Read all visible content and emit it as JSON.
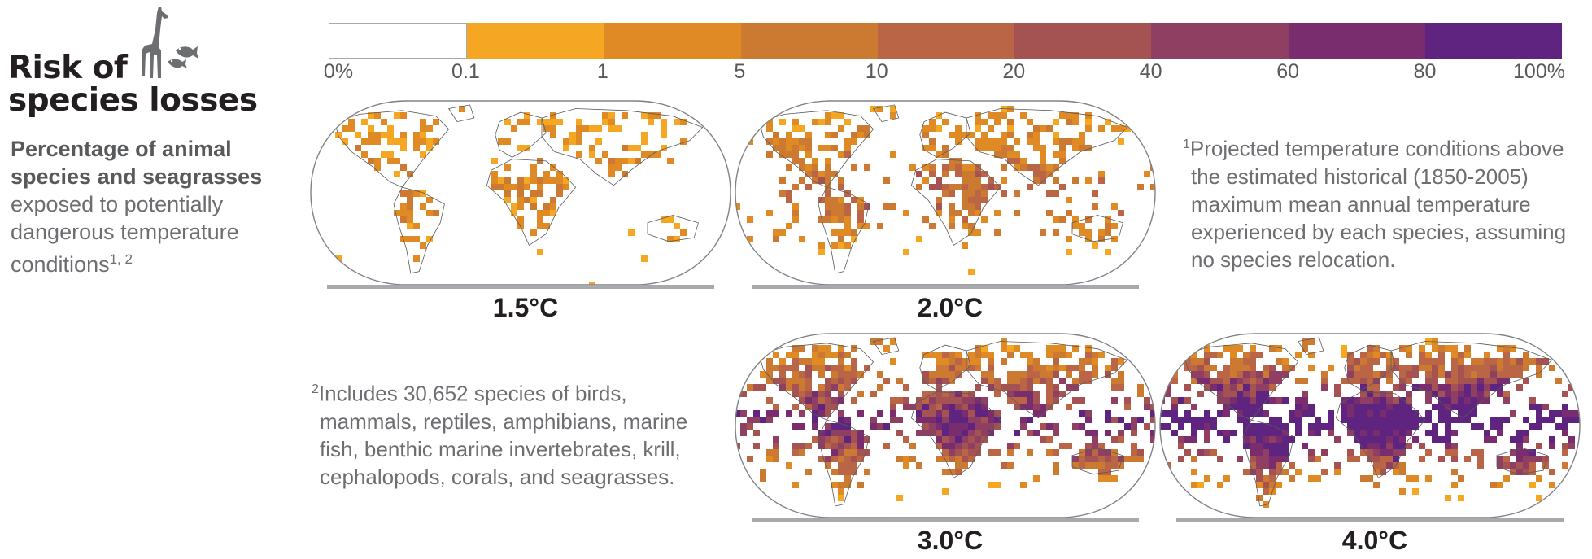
{
  "title": {
    "line1": "Risk of",
    "line2": "species losses"
  },
  "subtitle": {
    "bold_line1": "Percentage of animal",
    "bold_line2": "species and seagrasses",
    "line3": "exposed to potentially",
    "line4": "dangerous temperature",
    "line5": "conditions",
    "footnote_refs": "1, 2"
  },
  "icon": {
    "name": "giraffe-and-fish-icon",
    "color": "#6d6e71"
  },
  "legend": {
    "ticks": [
      "0%",
      "0.1",
      "1",
      "5",
      "10",
      "20",
      "40",
      "60",
      "80",
      "100%"
    ],
    "colors": [
      "#ffffff",
      "#f5a623",
      "#df8a25",
      "#cc7a32",
      "#ba6646",
      "#a45252",
      "#8e3f62",
      "#7a2d6e",
      "#5e2480"
    ]
  },
  "maps": [
    {
      "label": "1.5°C",
      "level": 0.28
    },
    {
      "label": "2.0°C",
      "level": 0.5
    },
    {
      "label": "3.0°C",
      "level": 0.82
    },
    {
      "label": "4.0°C",
      "level": 1.0
    }
  ],
  "footnotes": {
    "note1": {
      "marker": "1",
      "lines": [
        "Projected temperature conditions above",
        "the estimated historical (1850-2005)",
        "maximum mean annual temperature",
        "experienced by each species, assuming",
        "no species relocation."
      ]
    },
    "note2": {
      "marker": "2",
      "lines": [
        "Includes 30,652 species of birds,",
        "mammals, reptiles, amphibians, marine",
        "fish, benthic marine invertebrates, krill,",
        "cephalopods, corals, and seagrasses."
      ]
    }
  }
}
